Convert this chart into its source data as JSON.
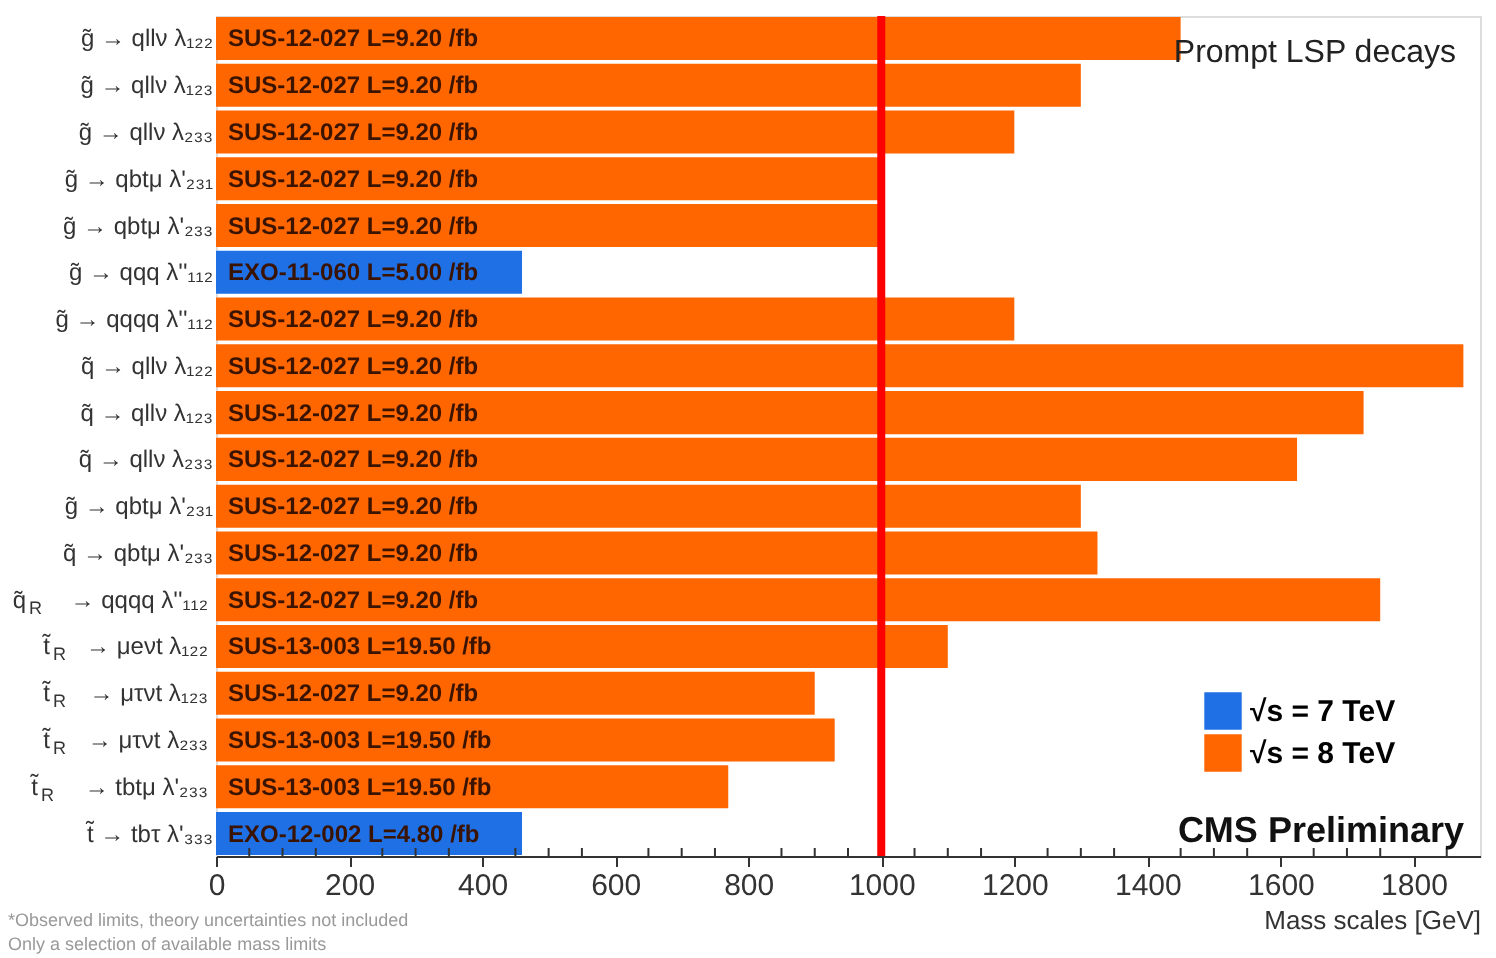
{
  "chart_data": {
    "type": "bar",
    "orientation": "horizontal",
    "xlabel": "Mass scales [GeV]",
    "categories": [
      "g̃ → qllν λ₁₂₂",
      "g̃ → qllν λ₁₂₃",
      "g̃ → qllν λ₂₃₃",
      "g̃ → qbtμ λ'₂₃₁",
      "g̃ → qbtμ λ'₂₃₃",
      "g̃ → qqq λ''₁₁₂",
      "g̃ → qqqq λ''₁₁₂",
      "q̃ → qllν λ₁₂₂",
      "q̃ → qllν λ₁₂₃",
      "q̃ → qllν λ₂₃₃",
      "g̃ → qbtμ λ'₂₃₁",
      "q̃ → qbtμ λ'₂₃₃",
      "q̃$_{R}$ → qqqq λ''₁₁₂",
      "t̃$_{R}$ → μeνt λ₁₂₂",
      "t̃$_{R}$ → μτνt λ₁₂₃",
      "t̃$_{R}$ → μτνt λ₂₃₃",
      "t̃$_{R}$ → tbtμ λ'₂₃₃",
      "t̃ → tbτ λ'₃₃₃"
    ],
    "series": [
      {
        "name": "√s = 7 TeV",
        "color": "#1f6fe5",
        "values": [
          null,
          null,
          null,
          null,
          null,
          460,
          null,
          null,
          null,
          null,
          null,
          null,
          null,
          null,
          null,
          null,
          null,
          460
        ],
        "value_labels": [
          null,
          null,
          null,
          null,
          null,
          "EXO-11-060 L=5.00 /fb",
          null,
          null,
          null,
          null,
          null,
          null,
          null,
          null,
          null,
          null,
          null,
          "EXO-12-002 L=4.80 /fb"
        ]
      },
      {
        "name": "√s = 8 TeV",
        "color": "#ff6600",
        "values": [
          1450,
          1300,
          1200,
          1000,
          1000,
          null,
          1200,
          1875,
          1725,
          1625,
          1300,
          1325,
          1750,
          1100,
          900,
          930,
          770,
          null
        ],
        "value_labels": [
          "SUS-12-027 L=9.20 /fb",
          "SUS-12-027 L=9.20 /fb",
          "SUS-12-027 L=9.20 /fb",
          "SUS-12-027 L=9.20 /fb",
          "SUS-12-027 L=9.20 /fb",
          null,
          "SUS-12-027 L=9.20 /fb",
          "SUS-12-027 L=9.20 /fb",
          "SUS-12-027 L=9.20 /fb",
          "SUS-12-027 L=9.20 /fb",
          "SUS-12-027 L=9.20 /fb",
          "SUS-12-027 L=9.20 /fb",
          "SUS-12-027 L=9.20 /fb",
          "SUS-13-003 L=19.50 /fb",
          "SUS-12-027 L=9.20 /fb",
          "SUS-13-003 L=19.50 /fb",
          "SUS-13-003 L=19.50 /fb",
          null
        ]
      }
    ],
    "xlim": [
      0,
      1900
    ],
    "xticks": [
      0,
      {
        "value": 50,
        "label": null
      },
      {
        "value": 100,
        "label": null
      },
      {
        "value": 150,
        "label": null
      },
      200,
      {
        "value": 250,
        "label": null
      },
      {
        "value": 300,
        "label": null
      },
      {
        "value": 350,
        "label": null
      },
      400,
      {
        "value": 450,
        "label": null
      },
      {
        "value": 500,
        "label": null
      },
      {
        "value": 550,
        "label": null
      },
      600,
      {
        "value": 650,
        "label": null
      },
      {
        "value": 700,
        "label": null
      },
      {
        "value": 750,
        "label": null
      },
      800,
      {
        "value": 850,
        "label": null
      },
      {
        "value": 900,
        "label": null
      },
      {
        "value": 950,
        "label": null
      },
      1000,
      {
        "value": 1050,
        "label": null
      },
      {
        "value": 1100,
        "label": null
      },
      {
        "value": 1150,
        "label": null
      },
      1200,
      {
        "value": 1250,
        "label": null
      },
      {
        "value": 1300,
        "label": null
      },
      {
        "value": 1350,
        "label": null
      },
      1400,
      {
        "value": 1450,
        "label": null
      },
      {
        "value": 1500,
        "label": null
      },
      {
        "value": 1550,
        "label": null
      },
      1600,
      {
        "value": 1650,
        "label": null
      },
      {
        "value": 1700,
        "label": null
      },
      {
        "value": 1750,
        "label": null
      },
      1800,
      {
        "value": 1850,
        "label": null
      }
    ],
    "ref_lines": [
      {
        "axis": "x",
        "value": 1000,
        "color": "#ff0000"
      }
    ],
    "annotations": [
      "Prompt LSP decays",
      "CMS Preliminary",
      "*Observed limits, theory uncertainties not included",
      "Only a selection of available mass limits"
    ],
    "grid": false,
    "legend": "bottom right"
  }
}
